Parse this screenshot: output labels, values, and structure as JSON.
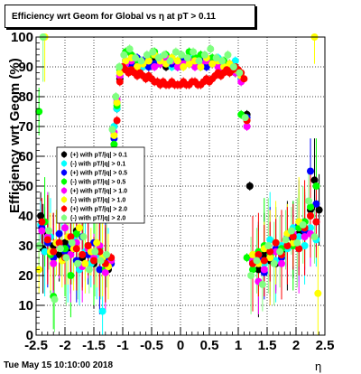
{
  "title": "Efficiency wrt Geom for Global vs   η at pT > 0.11",
  "footer": "Tue May 15 10:10:00 2018",
  "chart_data": {
    "type": "scatter",
    "title": "Efficiency wrt Geom for Global vs   η at pT > 0.11",
    "xlabel": "η",
    "ylabel": "Efficiency wrt Geom (%)",
    "xlim": [
      -2.5,
      2.5
    ],
    "ylim": [
      0,
      100
    ],
    "grid": true,
    "x_ticks": [
      "-2.5",
      "-2",
      "-1.5",
      "-1",
      "-0.5",
      "0",
      "0.5",
      "1",
      "1.5",
      "2",
      "2.5"
    ],
    "y_ticks": [
      "0",
      "10",
      "20",
      "30",
      "40",
      "50",
      "60",
      "70",
      "80",
      "90",
      "100"
    ],
    "legend_position": "center-left",
    "series": [
      {
        "name": "(+) with pT/|q| > 0.1",
        "color": "#000000",
        "x": [
          -2.42,
          -2.38,
          -2.3,
          -2.2,
          -2.1,
          -2.0,
          -1.9,
          -1.8,
          -1.7,
          -1.6,
          -1.5,
          -1.4,
          -1.3,
          -1.25,
          -1.15,
          -1.1,
          -1.05,
          -0.95,
          -0.85,
          -0.75,
          -0.65,
          -0.55,
          -0.45,
          -0.35,
          -0.25,
          -0.15,
          -0.05,
          0.05,
          0.15,
          0.25,
          0.35,
          0.45,
          0.55,
          0.65,
          0.75,
          0.85,
          0.95,
          1.05,
          1.15,
          1.2,
          1.25,
          1.35,
          1.45,
          1.55,
          1.65,
          1.75,
          1.85,
          1.95,
          2.05,
          2.15,
          2.25,
          2.32,
          2.4
        ],
        "y": [
          40,
          29,
          34,
          30,
          27,
          31,
          28,
          35,
          26,
          30,
          24,
          28,
          25,
          22,
          62,
          76,
          86,
          91,
          92,
          90,
          91,
          92,
          93,
          91,
          90,
          92,
          91,
          93,
          92,
          91,
          90,
          92,
          91,
          92,
          91,
          90,
          88,
          86,
          74,
          50,
          25,
          22,
          27,
          25,
          24,
          28,
          30,
          32,
          34,
          38,
          42,
          52,
          42
        ]
      },
      {
        "name": "(-) with pT/|q| > 0.1",
        "color": "#00ffff",
        "x": [
          -2.42,
          -2.35,
          -2.25,
          -2.15,
          -2.05,
          -1.95,
          -1.85,
          -1.75,
          -1.65,
          -1.55,
          -1.45,
          -1.35,
          -1.25,
          -1.15,
          -1.1,
          -1.05,
          -0.95,
          -0.85,
          -0.75,
          -0.65,
          -0.55,
          -0.45,
          -0.35,
          -0.25,
          -0.15,
          -0.05,
          0.05,
          0.15,
          0.25,
          0.35,
          0.45,
          0.55,
          0.65,
          0.75,
          0.85,
          0.95,
          1.05,
          1.15,
          1.25,
          1.35,
          1.45,
          1.55,
          1.65,
          1.75,
          1.85,
          1.95,
          2.05,
          2.15,
          2.25,
          2.35
        ],
        "y": [
          37,
          28,
          33,
          31,
          29,
          27,
          32,
          22,
          28,
          24,
          27,
          8,
          25,
          70,
          76,
          88,
          92,
          93,
          91,
          90,
          92,
          91,
          93,
          92,
          90,
          91,
          92,
          93,
          91,
          90,
          92,
          91,
          93,
          91,
          90,
          92,
          86,
          72,
          26,
          27,
          24,
          32,
          25,
          30,
          29,
          36,
          33,
          30,
          36,
          32
        ]
      },
      {
        "name": "(+) with pT/|q| > 0.5",
        "color": "#0000ff",
        "x": [
          -2.4,
          -2.3,
          -2.2,
          -2.1,
          -2.0,
          -1.9,
          -1.8,
          -1.7,
          -1.6,
          -1.5,
          -1.4,
          -1.3,
          -1.2,
          -1.15,
          -1.1,
          -1.05,
          -0.95,
          -0.85,
          -0.75,
          -0.65,
          -0.55,
          -0.45,
          -0.35,
          -0.25,
          -0.15,
          -0.05,
          0.05,
          0.15,
          0.25,
          0.35,
          0.45,
          0.55,
          0.65,
          0.75,
          0.85,
          0.95,
          1.05,
          1.15,
          1.25,
          1.35,
          1.45,
          1.55,
          1.65,
          1.75,
          1.85,
          1.95,
          2.05,
          2.15,
          2.25,
          2.35
        ],
        "y": [
          36,
          31,
          26,
          34,
          28,
          30,
          25,
          33,
          27,
          31,
          22,
          26,
          24,
          66,
          78,
          87,
          92,
          91,
          93,
          92,
          90,
          91,
          92,
          93,
          91,
          90,
          92,
          91,
          93,
          92,
          90,
          91,
          92,
          90,
          91,
          89,
          87,
          73,
          24,
          26,
          21,
          27,
          29,
          26,
          33,
          30,
          37,
          35,
          55,
          44
        ]
      },
      {
        "name": "(-) with pT/|q| > 0.5",
        "color": "#00ff00",
        "x": [
          -2.45,
          -2.35,
          -2.25,
          -2.2,
          -2.1,
          -2.0,
          -1.9,
          -1.8,
          -1.7,
          -1.6,
          -1.5,
          -1.4,
          -1.3,
          -1.2,
          -1.15,
          -1.1,
          -1.05,
          -0.95,
          -0.85,
          -0.75,
          -0.65,
          -0.55,
          -0.45,
          -0.35,
          -0.25,
          -0.15,
          -0.05,
          0.05,
          0.15,
          0.25,
          0.35,
          0.45,
          0.55,
          0.65,
          0.75,
          0.85,
          0.95,
          1.05,
          1.15,
          1.25,
          1.35,
          1.45,
          1.55,
          1.65,
          1.75,
          1.85,
          1.95,
          2.05,
          2.15,
          2.25,
          2.35
        ],
        "y": [
          75,
          38,
          27,
          13,
          31,
          29,
          20,
          34,
          27,
          30,
          25,
          29,
          22,
          25,
          64,
          77,
          89,
          95,
          94,
          92,
          91,
          93,
          95,
          92,
          94,
          93,
          92,
          91,
          95,
          93,
          94,
          92,
          93,
          91,
          92,
          91,
          88,
          74,
          26,
          22,
          28,
          30,
          27,
          31,
          29,
          34,
          30,
          36,
          38,
          43,
          50
        ]
      },
      {
        "name": "(+) with pT/|q| > 1.0",
        "color": "#ff00ff",
        "x": [
          -2.4,
          -2.3,
          -2.2,
          -2.1,
          -2.0,
          -1.9,
          -1.8,
          -1.7,
          -1.6,
          -1.5,
          -1.4,
          -1.3,
          -1.2,
          -1.15,
          -1.1,
          -1.05,
          -0.95,
          -0.85,
          -0.75,
          -0.65,
          -0.55,
          -0.45,
          -0.35,
          -0.25,
          -0.15,
          -0.05,
          0.05,
          0.15,
          0.25,
          0.35,
          0.45,
          0.55,
          0.65,
          0.75,
          0.85,
          0.95,
          1.05,
          1.15,
          1.25,
          1.35,
          1.45,
          1.55,
          1.65,
          1.75,
          1.85,
          1.95,
          2.05,
          2.15,
          2.25,
          2.35
        ],
        "y": [
          35,
          33,
          24,
          30,
          36,
          27,
          31,
          23,
          29,
          26,
          30,
          21,
          25,
          68,
          79,
          87,
          91,
          92,
          90,
          91,
          92,
          90,
          91,
          93,
          92,
          90,
          91,
          92,
          90,
          91,
          92,
          91,
          90,
          89,
          91,
          88,
          85,
          70,
          25,
          18,
          22,
          26,
          28,
          24,
          30,
          34,
          29,
          33,
          34,
          38
        ]
      },
      {
        "name": "(-) with pT/|q| > 1.0",
        "color": "#ffff00",
        "x": [
          -2.45,
          -2.35,
          -2.25,
          -2.15,
          -2.05,
          -1.95,
          -1.85,
          -1.75,
          -1.65,
          -1.55,
          -1.45,
          -1.35,
          -1.25,
          -1.15,
          -1.1,
          -1.05,
          -0.95,
          -0.85,
          -0.75,
          -0.65,
          -0.55,
          -0.45,
          -0.35,
          -0.25,
          -0.15,
          -0.05,
          0.05,
          0.15,
          0.25,
          0.35,
          0.45,
          0.55,
          0.65,
          0.75,
          0.85,
          0.95,
          1.05,
          1.15,
          1.25,
          1.35,
          1.45,
          1.55,
          1.65,
          1.75,
          1.85,
          1.95,
          2.05,
          2.15,
          2.25,
          2.32,
          2.38
        ],
        "y": [
          22,
          100,
          28,
          31,
          25,
          33,
          29,
          36,
          24,
          28,
          31,
          26,
          23,
          67,
          78,
          88,
          92,
          93,
          90,
          91,
          92,
          94,
          92,
          91,
          93,
          92,
          90,
          91,
          92,
          90,
          93,
          91,
          92,
          90,
          91,
          89,
          87,
          72,
          27,
          24,
          29,
          26,
          31,
          27,
          34,
          31,
          38,
          36,
          40,
          100,
          14
        ]
      },
      {
        "name": "(+) with pT/|q| > 2.0",
        "color": "#ff0000",
        "x": [
          -2.4,
          -2.3,
          -2.2,
          -2.1,
          -2.0,
          -1.9,
          -1.8,
          -1.7,
          -1.6,
          -1.5,
          -1.4,
          -1.3,
          -1.2,
          -1.1,
          -1.05,
          -1.0,
          -0.95,
          -0.9,
          -0.85,
          -0.8,
          -0.75,
          -0.7,
          -0.65,
          -0.6,
          -0.55,
          -0.5,
          -0.45,
          -0.4,
          -0.35,
          -0.3,
          -0.25,
          -0.2,
          -0.15,
          -0.1,
          -0.05,
          0.0,
          0.05,
          0.1,
          0.15,
          0.2,
          0.25,
          0.3,
          0.35,
          0.4,
          0.45,
          0.5,
          0.55,
          0.6,
          0.65,
          0.7,
          0.75,
          0.8,
          0.85,
          0.9,
          0.95,
          1.0,
          1.05,
          1.1,
          1.15,
          1.25,
          1.35,
          1.45,
          1.55,
          1.65,
          1.75,
          1.85,
          1.95,
          2.05,
          2.15,
          2.25,
          2.35
        ],
        "y": [
          38,
          32,
          28,
          31,
          26,
          33,
          29,
          27,
          30,
          25,
          28,
          24,
          26,
          72,
          85,
          90,
          89,
          88,
          89,
          88,
          87,
          88,
          87,
          86,
          87,
          86,
          85,
          85,
          84,
          85,
          84,
          84,
          85,
          84,
          84,
          84,
          85,
          84,
          84,
          85,
          85,
          84,
          84,
          85,
          86,
          85,
          86,
          87,
          88,
          87,
          88,
          89,
          88,
          89,
          90,
          89,
          88,
          86,
          72,
          24,
          27,
          25,
          28,
          31,
          27,
          30,
          33,
          29,
          36,
          40,
          38
        ]
      },
      {
        "name": "(-) with pT/|q| > 2.0",
        "color": "#80ff80",
        "x": [
          -2.45,
          -2.38,
          -2.28,
          -2.18,
          -2.08,
          -1.98,
          -1.88,
          -1.78,
          -1.68,
          -1.58,
          -1.48,
          -1.38,
          -1.28,
          -1.18,
          -1.12,
          -1.06,
          -0.98,
          -0.88,
          -0.78,
          -0.68,
          -0.58,
          -0.48,
          -0.38,
          -0.28,
          -0.18,
          -0.08,
          0.02,
          0.12,
          0.22,
          0.32,
          0.42,
          0.52,
          0.62,
          0.72,
          0.82,
          0.92,
          1.02,
          1.12,
          1.22,
          1.32,
          1.42,
          1.52,
          1.62,
          1.72,
          1.82,
          1.92,
          2.02,
          2.12,
          2.22,
          2.32
        ],
        "y": [
          30,
          100,
          35,
          12,
          29,
          26,
          31,
          24,
          33,
          22,
          28,
          25,
          27,
          69,
          80,
          90,
          94,
          96,
          93,
          92,
          94,
          95,
          93,
          94,
          92,
          95,
          94,
          93,
          95,
          92,
          94,
          96,
          93,
          92,
          94,
          90,
          88,
          73,
          20,
          25,
          17,
          30,
          24,
          28,
          32,
          35,
          31,
          37,
          45,
          33
        ]
      }
    ]
  }
}
